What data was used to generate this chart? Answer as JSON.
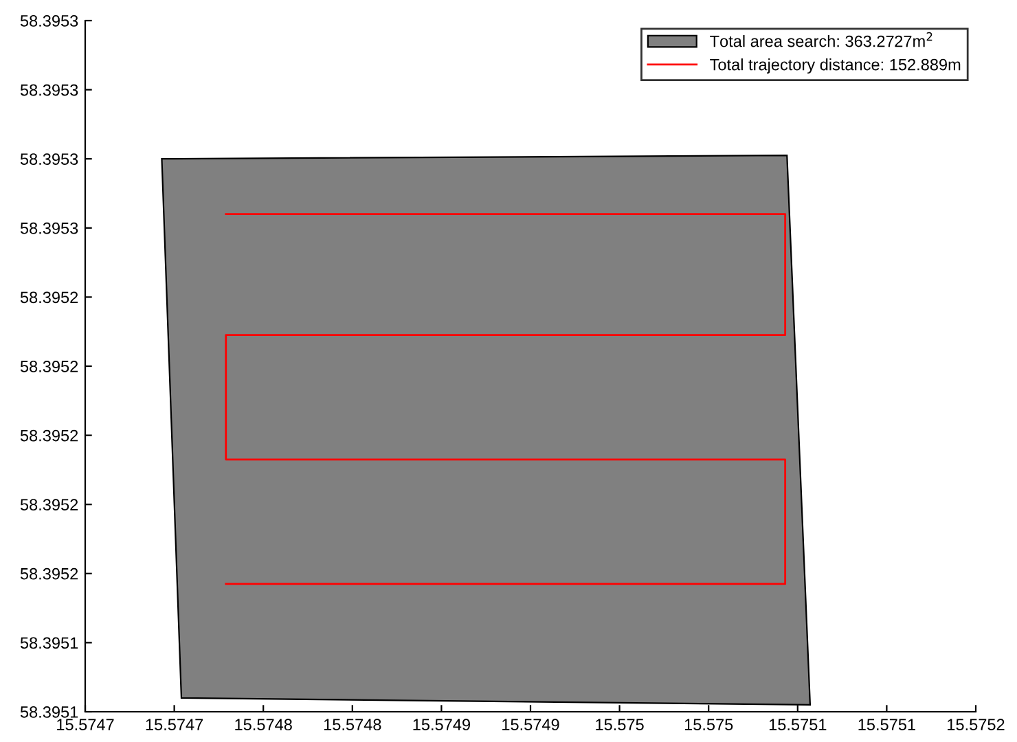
{
  "chart_data": {
    "type": "line",
    "series": [
      {
        "name": "Total area search: 363.2727m$^{2}$",
        "type": "area",
        "color": "#808080",
        "x": [
          15.574693,
          15.575044,
          15.575057,
          15.574704
        ],
        "values": [
          58.39528,
          58.395281,
          58.395122,
          58.395124
        ]
      },
      {
        "name": "Total trajectory distance: 152.889m",
        "color": "#ff0000",
        "x": [
          15.574729,
          15.575043,
          15.575043,
          15.574729,
          15.574729,
          15.575043,
          15.575043,
          15.574729
        ],
        "values": [
          58.395264,
          58.395264,
          58.395229,
          58.395229,
          58.395193,
          58.395193,
          58.395157,
          58.395157
        ]
      }
    ],
    "xlim": [
      15.57465,
      15.57515
    ],
    "xticks": [
      {
        "value": 15.57465,
        "label": "15.5747"
      },
      {
        "value": 15.5747,
        "label": "15.5747"
      },
      {
        "value": 15.57475,
        "label": "15.5748"
      },
      {
        "value": 15.5748,
        "label": "15.5748"
      },
      {
        "value": 15.57485,
        "label": "15.5749"
      },
      {
        "value": 15.5749,
        "label": "15.5749"
      },
      {
        "value": 15.57495,
        "label": "15.575"
      },
      {
        "value": 15.575,
        "label": "15.575"
      },
      {
        "value": 15.57505,
        "label": "15.5751"
      },
      {
        "value": 15.5751,
        "label": "15.5751"
      },
      {
        "value": 15.57515,
        "label": "15.5752"
      }
    ],
    "ylim": [
      58.39512,
      58.39532
    ],
    "yticks": [
      {
        "value": 58.39512,
        "label": "58.3951"
      },
      {
        "value": 58.39514,
        "label": "58.3951"
      },
      {
        "value": 58.39516,
        "label": "58.3952"
      },
      {
        "value": 58.39518,
        "label": "58.3952"
      },
      {
        "value": 58.3952,
        "label": "58.3952"
      },
      {
        "value": 58.39522,
        "label": "58.3952"
      },
      {
        "value": 58.39524,
        "label": "58.3952"
      },
      {
        "value": 58.39526,
        "label": "58.3953"
      },
      {
        "value": 58.39528,
        "label": "58.3953"
      },
      {
        "value": 58.3953,
        "label": "58.3953"
      },
      {
        "value": 58.39532,
        "label": "58.3953"
      }
    ],
    "grid": false,
    "legend": "top right"
  }
}
